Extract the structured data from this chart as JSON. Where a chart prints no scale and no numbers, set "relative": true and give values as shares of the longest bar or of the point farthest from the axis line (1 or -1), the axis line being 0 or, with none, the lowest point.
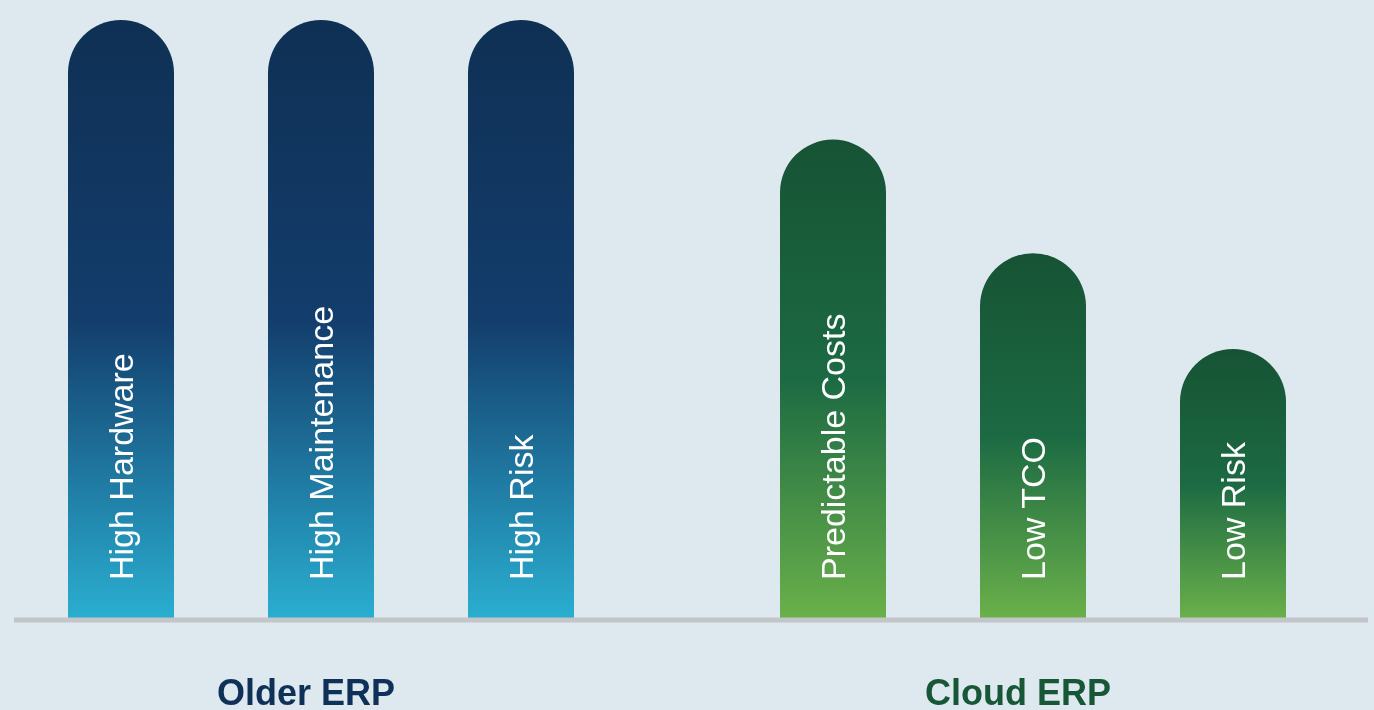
{
  "chart_data": {
    "type": "bar",
    "relative": true,
    "categories": [
      "High Hardware",
      "High Maintenance",
      "High Risk",
      "Predictable Costs",
      "Low TCO",
      "Low Risk"
    ],
    "series": [
      {
        "name": "Older ERP",
        "color": "#133d6c",
        "values": [
          1,
          1,
          1,
          null,
          null,
          null
        ]
      },
      {
        "name": "Cloud ERP",
        "color": "#1c6a43",
        "values": [
          null,
          null,
          null,
          0.8,
          0.61,
          0.45
        ]
      }
    ]
  }
}
